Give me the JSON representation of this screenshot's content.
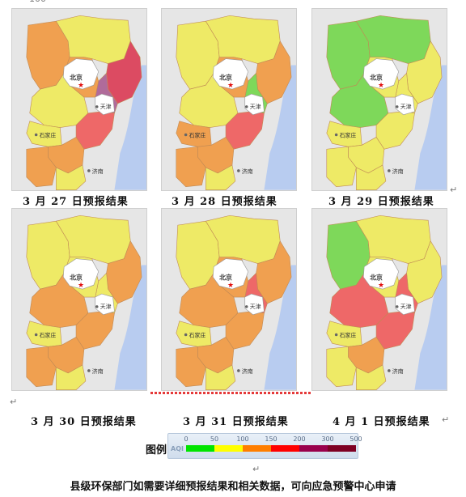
{
  "top_fragment": "100",
  "panels": [
    {
      "caption": "3 月 27 日预报结果",
      "fill": {
        "r1": "#f0a050",
        "r2": "#eeea66",
        "r3": "#dc4b62",
        "r4": "#eeea66",
        "r5": "#b06b9a",
        "r6": "#ee6868",
        "r7": "#eeea66",
        "r8": "#f0a050",
        "r9": "#f0a050",
        "r10": "#eeea66",
        "r11": "#f0a050"
      }
    },
    {
      "caption": "3 月 28 日预报结果",
      "fill": {
        "r1": "#eeea66",
        "r2": "#eeea66",
        "r3": "#f0a050",
        "r4": "#eeea66",
        "r5": "#7ed85a",
        "r6": "#ee6868",
        "r7": "#f0a050",
        "r8": "#f0a050",
        "r9": "#f0a050",
        "r10": "#eeea66",
        "r11": "#f0a050"
      }
    },
    {
      "caption": "3 月 29 日预报结果",
      "fill": {
        "r1": "#7ed85a",
        "r2": "#7ed85a",
        "r3": "#eeea66",
        "r4": "#7ed85a",
        "r5": "#eeea66",
        "r6": "#eeea66",
        "r7": "#eeea66",
        "r8": "#eeea66",
        "r9": "#eeea66",
        "r10": "#eeea66",
        "r11": "#eeea66"
      }
    },
    {
      "caption": "3 月 30 日预报结果",
      "fill": {
        "r1": "#eeea66",
        "r2": "#eeea66",
        "r3": "#f0a050",
        "r4": "#f0a050",
        "r5": "#eeea66",
        "r6": "#f0a050",
        "r7": "#eeea66",
        "r8": "#f0a050",
        "r9": "#f0a050",
        "r10": "#eeea66",
        "r11": "#eeea66"
      }
    },
    {
      "caption": "3 月 31 日预报结果",
      "fill": {
        "r1": "#eeea66",
        "r2": "#eeea66",
        "r3": "#f0a050",
        "r4": "#f0a050",
        "r5": "#ee6868",
        "r6": "#f0a050",
        "r7": "#eeea66",
        "r8": "#f0a050",
        "r9": "#f0a050",
        "r10": "#eeea66",
        "r11": "#f0a050"
      }
    },
    {
      "caption": "4 月 1 日预报结果",
      "fill": {
        "r1": "#7ed85a",
        "r2": "#eeea66",
        "r3": "#eeea66",
        "r4": "#ee6868",
        "r5": "#ee6868",
        "r6": "#ee6868",
        "r7": "#eeea66",
        "r8": "#f0a050",
        "r9": "#eeea66",
        "r10": "#eeea66",
        "r11": "#eeea66"
      }
    }
  ],
  "map_labels": {
    "beijing": "北京",
    "tianjin": "天津",
    "shijiazhuang": "石家庄",
    "jinan": "济南"
  },
  "colors": {
    "sea": "#b8ccf0",
    "land_outside": "#e6e6e6",
    "beijing_fill": "#ffffff",
    "star": "#e01010"
  },
  "legend": {
    "label": "图例",
    "aqi": "AQI",
    "ticks": [
      "0",
      "50",
      "100",
      "150",
      "200",
      "300",
      "500"
    ],
    "colors": [
      "#00e400",
      "#ffff00",
      "#ff7e00",
      "#ff0000",
      "#99004c",
      "#7e0023"
    ]
  },
  "footer": "县级环保部门如需要详细预报结果和相关数据，可向应急预警中心申请"
}
